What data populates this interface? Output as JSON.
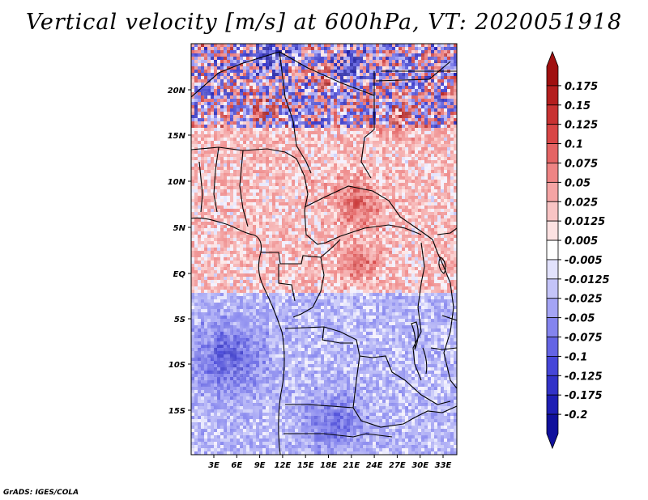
{
  "title": "Vertical velocity [m/s] at 600hPa, VT: 2020051918",
  "credit": "GrADS: IGES/COLA",
  "map": {
    "lat_ticks": [
      "20N",
      "15N",
      "10N",
      "5N",
      "EQ",
      "5S",
      "10S",
      "15S"
    ],
    "lon_ticks": [
      "3E",
      "6E",
      "9E",
      "12E",
      "15E",
      "18E",
      "21E",
      "24E",
      "27E",
      "30E",
      "33E"
    ]
  },
  "colorbar": {
    "labels": [
      "0.175",
      "0.15",
      "0.125",
      "0.1",
      "0.075",
      "0.05",
      "0.025",
      "0.0125",
      "0.005",
      "-0.005",
      "-0.0125",
      "-0.025",
      "-0.05",
      "-0.075",
      "-0.1",
      "-0.125",
      "-0.175",
      "-0.2"
    ],
    "colors": [
      "#a01010",
      "#b41e1e",
      "#c83232",
      "#d84646",
      "#e46464",
      "#ee8484",
      "#f4a4a4",
      "#f8c4c4",
      "#fce2e2",
      "#ffffff",
      "#e2e2fc",
      "#c4c4f8",
      "#a4a4f4",
      "#8484ee",
      "#6464e4",
      "#4646d8",
      "#3232c8",
      "#1e1eb4",
      "#10109c"
    ]
  }
}
